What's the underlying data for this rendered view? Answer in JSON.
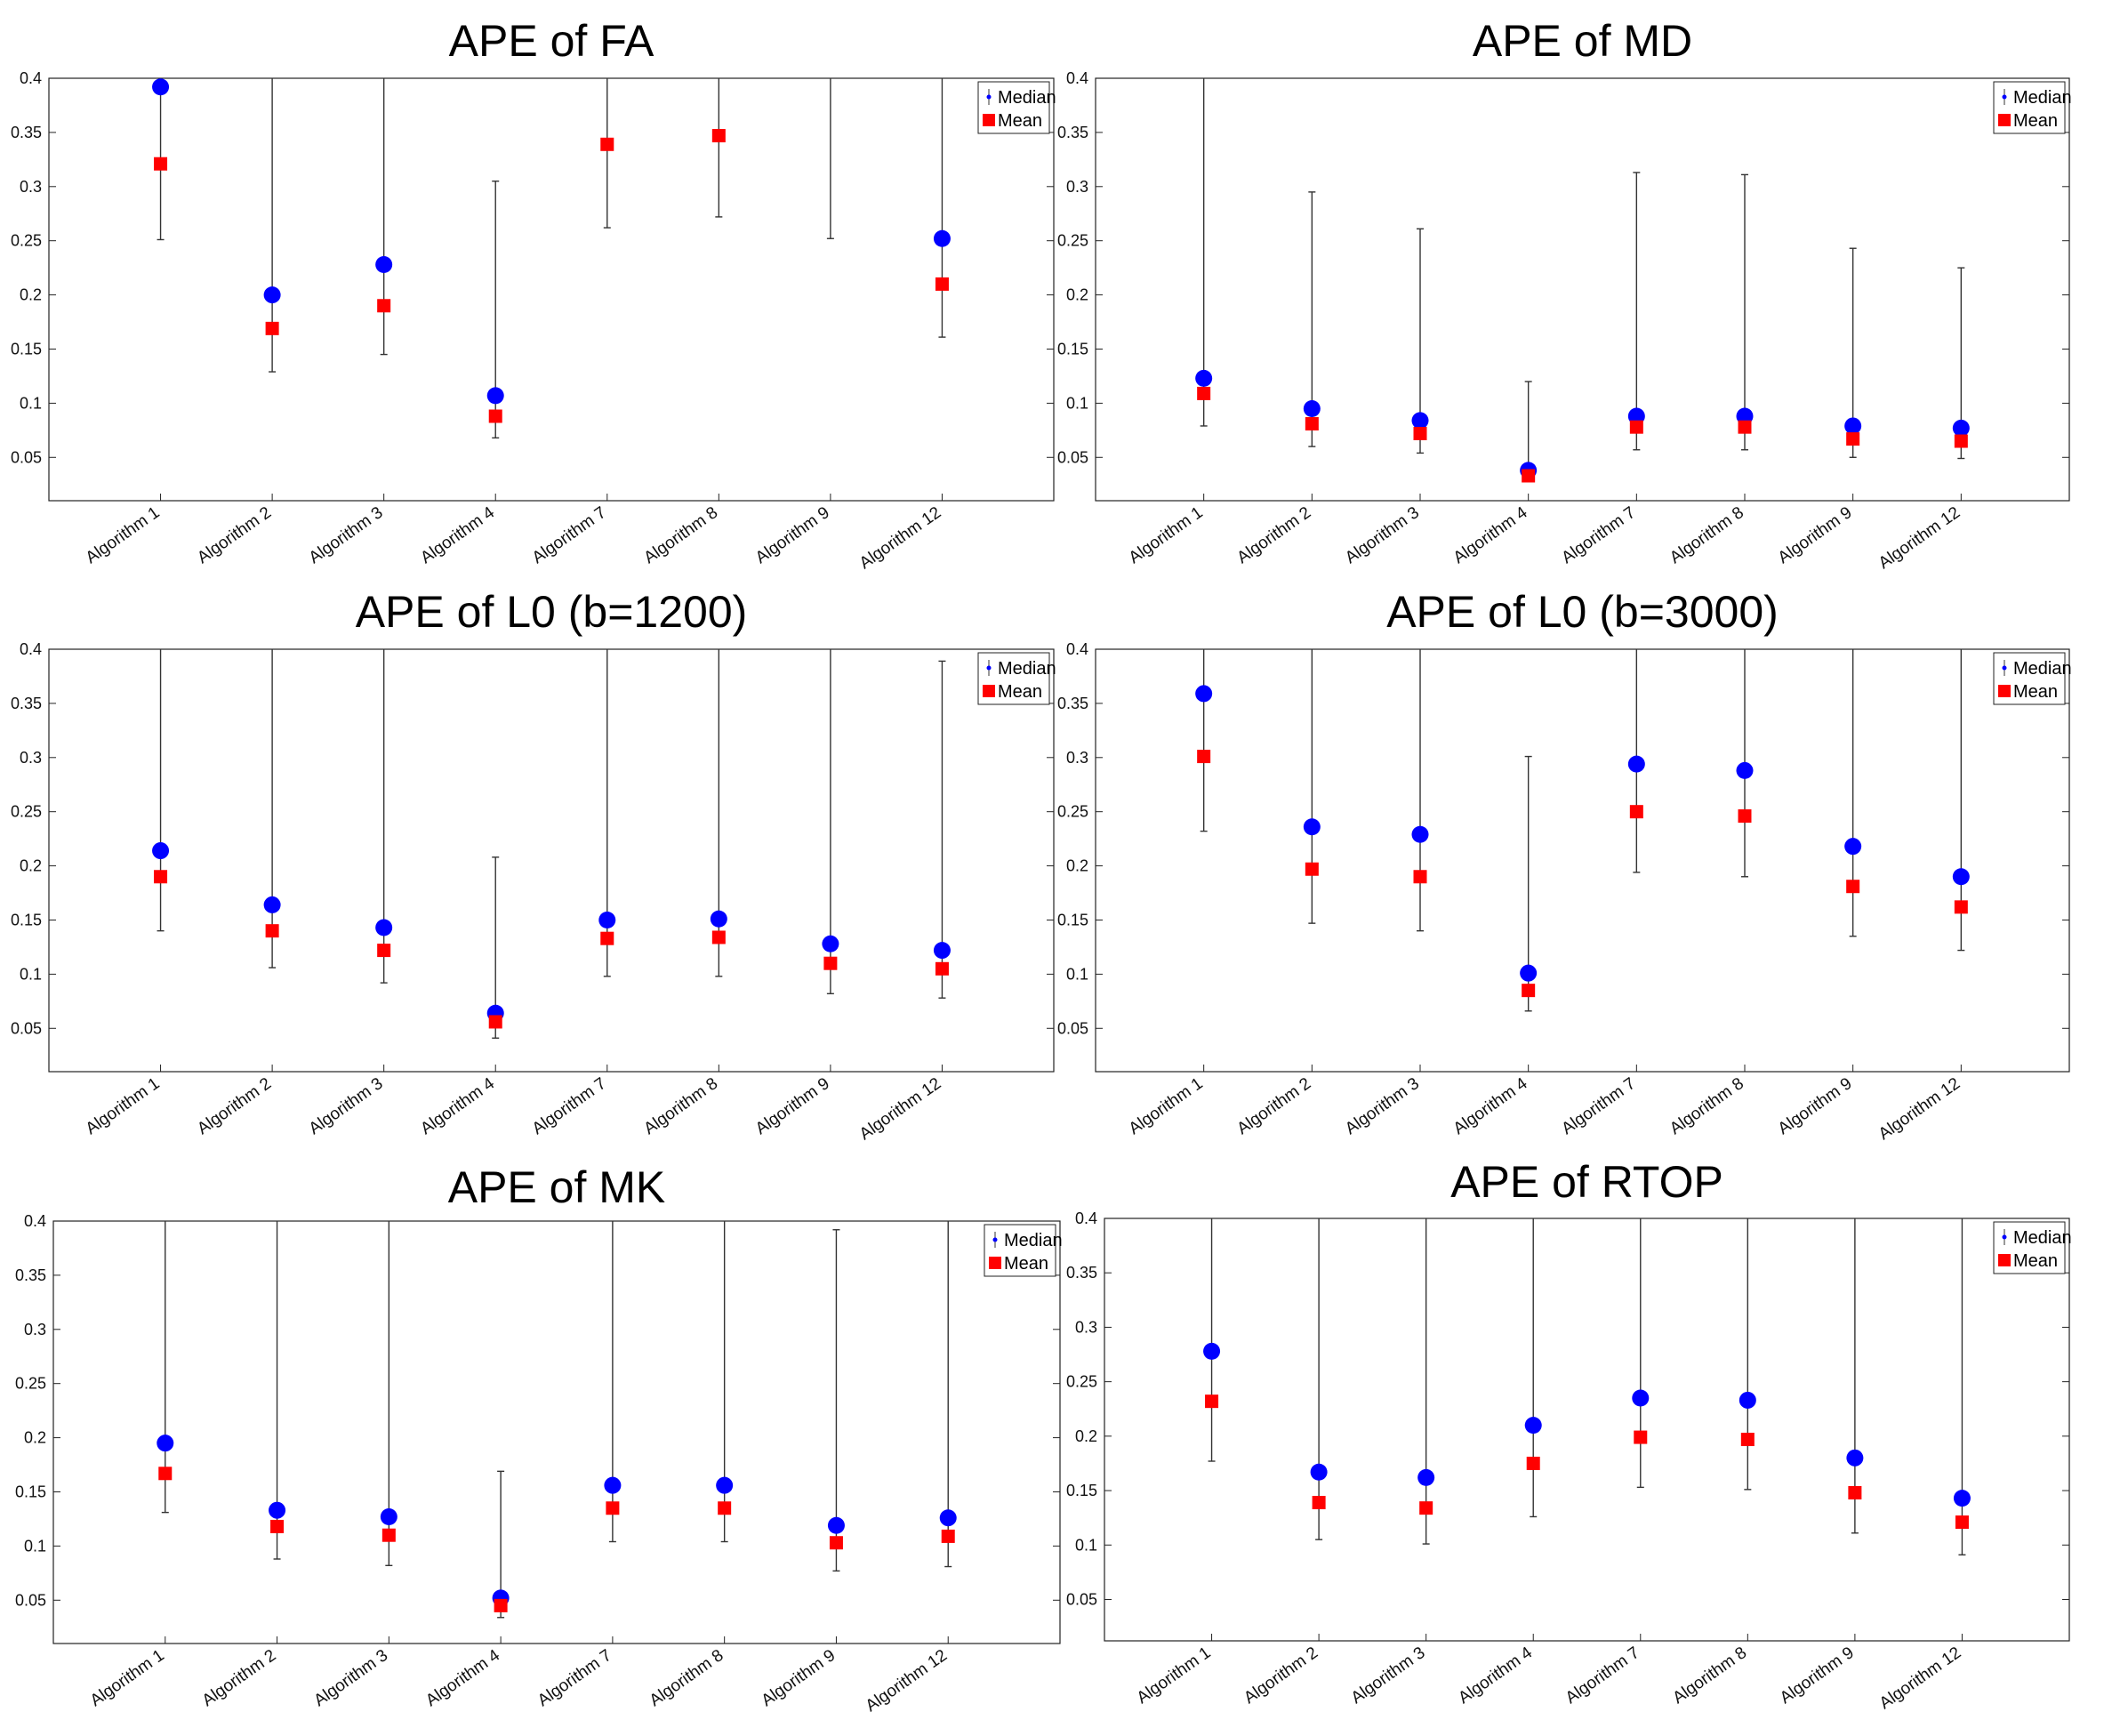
{
  "chart_data": [
    {
      "type": "scatter",
      "title": "APE of FA",
      "categories": [
        "Algorithm 1",
        "Algorithm 2",
        "Algorithm 3",
        "Algorithm 4",
        "Algorithm 7",
        "Algorithm 8",
        "Algorithm 9",
        "Algorithm 12"
      ],
      "ylim": [
        0.01,
        0.4
      ],
      "yticks": [
        0.05,
        0.1,
        0.15,
        0.2,
        0.25,
        0.3,
        0.35,
        0.4
      ],
      "ytick_labels": [
        "0.05",
        "0.1",
        "0.15",
        "0.2",
        "0.25",
        "0.3",
        "0.35",
        "0.4"
      ],
      "legend": [
        "Median",
        "Mean"
      ],
      "legend_position": "top-right",
      "series": [
        {
          "name": "Median",
          "values": [
            0.392,
            0.2,
            0.228,
            0.107,
            null,
            null,
            null,
            0.252
          ]
        },
        {
          "name": "Mean",
          "values": [
            0.321,
            0.169,
            0.19,
            0.088,
            0.339,
            0.347,
            null,
            0.21
          ]
        },
        {
          "name": "Lower",
          "values": [
            0.251,
            0.129,
            0.145,
            0.068,
            0.262,
            0.272,
            0.252,
            0.161
          ]
        },
        {
          "name": "Upper",
          "values": [
            0.4,
            0.4,
            0.4,
            0.305,
            0.4,
            0.4,
            0.4,
            0.4
          ]
        }
      ]
    },
    {
      "type": "scatter",
      "title": "APE of MD",
      "categories": [
        "Algorithm 1",
        "Algorithm 2",
        "Algorithm 3",
        "Algorithm 4",
        "Algorithm 7",
        "Algorithm 8",
        "Algorithm 9",
        "Algorithm 12"
      ],
      "ylim": [
        0.01,
        0.4
      ],
      "yticks": [
        0.05,
        0.1,
        0.15,
        0.2,
        0.25,
        0.3,
        0.35,
        0.4
      ],
      "ytick_labels": [
        "0.05",
        "0.1",
        "0.15",
        "0.2",
        "0.25",
        "0.3",
        "0.35",
        "0.4"
      ],
      "legend": [
        "Median",
        "Mean"
      ],
      "legend_position": "top-right",
      "series": [
        {
          "name": "Median",
          "values": [
            0.123,
            0.095,
            0.084,
            0.038,
            0.088,
            0.088,
            0.079,
            0.077
          ]
        },
        {
          "name": "Mean",
          "values": [
            0.109,
            0.081,
            0.072,
            0.033,
            0.078,
            0.078,
            0.067,
            0.065
          ]
        },
        {
          "name": "Lower",
          "values": [
            0.079,
            0.06,
            0.054,
            0.028,
            0.057,
            0.057,
            0.05,
            0.049
          ]
        },
        {
          "name": "Upper",
          "values": [
            0.4,
            0.295,
            0.261,
            0.12,
            0.313,
            0.311,
            0.243,
            0.225
          ]
        }
      ]
    },
    {
      "type": "scatter",
      "title": "APE of L0 (b=1200)",
      "categories": [
        "Algorithm 1",
        "Algorithm 2",
        "Algorithm 3",
        "Algorithm 4",
        "Algorithm 7",
        "Algorithm 8",
        "Algorithm 9",
        "Algorithm 12"
      ],
      "ylim": [
        0.01,
        0.4
      ],
      "yticks": [
        0.05,
        0.1,
        0.15,
        0.2,
        0.25,
        0.3,
        0.35,
        0.4
      ],
      "ytick_labels": [
        "0.05",
        "0.1",
        "0.15",
        "0.2",
        "0.25",
        "0.3",
        "0.35",
        "0.4"
      ],
      "legend": [
        "Median",
        "Mean"
      ],
      "legend_position": "top-right",
      "series": [
        {
          "name": "Median",
          "values": [
            0.214,
            0.164,
            0.143,
            0.064,
            0.15,
            0.151,
            0.128,
            0.122
          ]
        },
        {
          "name": "Mean",
          "values": [
            0.19,
            0.14,
            0.122,
            0.056,
            0.133,
            0.134,
            0.11,
            0.105
          ]
        },
        {
          "name": "Lower",
          "values": [
            0.14,
            0.106,
            0.092,
            0.041,
            0.098,
            0.098,
            0.082,
            0.078
          ]
        },
        {
          "name": "Upper",
          "values": [
            0.4,
            0.4,
            0.4,
            0.208,
            0.4,
            0.4,
            0.4,
            0.389
          ]
        }
      ]
    },
    {
      "type": "scatter",
      "title": "APE of L0 (b=3000)",
      "categories": [
        "Algorithm 1",
        "Algorithm 2",
        "Algorithm 3",
        "Algorithm 4",
        "Algorithm 7",
        "Algorithm 8",
        "Algorithm 9",
        "Algorithm 12"
      ],
      "ylim": [
        0.01,
        0.4
      ],
      "yticks": [
        0.05,
        0.1,
        0.15,
        0.2,
        0.25,
        0.3,
        0.35,
        0.4
      ],
      "ytick_labels": [
        "0.05",
        "0.1",
        "0.15",
        "0.2",
        "0.25",
        "0.3",
        "0.35",
        "0.4"
      ],
      "legend": [
        "Median",
        "Mean"
      ],
      "legend_position": "top-right",
      "series": [
        {
          "name": "Median",
          "values": [
            0.359,
            0.236,
            0.229,
            0.101,
            0.294,
            0.288,
            0.218,
            0.19
          ]
        },
        {
          "name": "Mean",
          "values": [
            0.301,
            0.197,
            0.19,
            0.085,
            0.25,
            0.246,
            0.181,
            0.162
          ]
        },
        {
          "name": "Lower",
          "values": [
            0.232,
            0.147,
            0.14,
            0.066,
            0.194,
            0.19,
            0.135,
            0.122
          ]
        },
        {
          "name": "Upper",
          "values": [
            0.4,
            0.4,
            0.4,
            0.301,
            0.4,
            0.4,
            0.4,
            0.4
          ]
        }
      ]
    },
    {
      "type": "scatter",
      "title": "APE of MK",
      "categories": [
        "Algorithm 1",
        "Algorithm 2",
        "Algorithm 3",
        "Algorithm 4",
        "Algorithm 7",
        "Algorithm 8",
        "Algorithm 9",
        "Algorithm 12"
      ],
      "ylim": [
        0.01,
        0.4
      ],
      "yticks": [
        0.05,
        0.1,
        0.15,
        0.2,
        0.25,
        0.3,
        0.35,
        0.4
      ],
      "ytick_labels": [
        "0.05",
        "0.1",
        "0.15",
        "0.2",
        "0.25",
        "0.3",
        "0.35",
        "0.4"
      ],
      "legend": [
        "Median",
        "Mean"
      ],
      "legend_position": "top-right",
      "series": [
        {
          "name": "Median",
          "values": [
            0.195,
            0.133,
            0.127,
            0.052,
            0.156,
            0.156,
            0.119,
            0.126
          ]
        },
        {
          "name": "Mean",
          "values": [
            0.167,
            0.118,
            0.11,
            0.045,
            0.135,
            0.135,
            0.103,
            0.109
          ]
        },
        {
          "name": "Lower",
          "values": [
            0.131,
            0.088,
            0.082,
            0.034,
            0.104,
            0.104,
            0.077,
            0.081
          ]
        },
        {
          "name": "Upper",
          "values": [
            0.4,
            0.4,
            0.4,
            0.169,
            0.4,
            0.4,
            0.392,
            0.4
          ]
        }
      ]
    },
    {
      "type": "scatter",
      "title": "APE of RTOP",
      "categories": [
        "Algorithm 1",
        "Algorithm 2",
        "Algorithm 3",
        "Algorithm 4",
        "Algorithm 7",
        "Algorithm 8",
        "Algorithm 9",
        "Algorithm 12"
      ],
      "ylim": [
        0.012,
        0.4
      ],
      "yticks": [
        0.05,
        0.1,
        0.15,
        0.2,
        0.25,
        0.3,
        0.35,
        0.4
      ],
      "ytick_labels": [
        "0.05",
        "0.1",
        "0.15",
        "0.2",
        "0.25",
        "0.3",
        "0.35",
        "0.4"
      ],
      "legend": [
        "Median",
        "Mean"
      ],
      "legend_position": "top-right",
      "series": [
        {
          "name": "Median",
          "values": [
            0.278,
            0.167,
            0.162,
            0.21,
            0.235,
            0.233,
            0.18,
            0.143
          ]
        },
        {
          "name": "Mean",
          "values": [
            0.232,
            0.139,
            0.134,
            0.175,
            0.199,
            0.197,
            0.148,
            0.121
          ]
        },
        {
          "name": "Lower",
          "values": [
            0.177,
            0.105,
            0.101,
            0.126,
            0.153,
            0.151,
            0.111,
            0.091
          ]
        },
        {
          "name": "Upper",
          "values": [
            0.4,
            0.4,
            0.4,
            0.4,
            0.4,
            0.4,
            0.4,
            0.4
          ]
        }
      ]
    }
  ],
  "colors": {
    "median": "#0000ff",
    "mean": "#ff0000",
    "errorbar": "#333333",
    "axis": "#222222"
  }
}
